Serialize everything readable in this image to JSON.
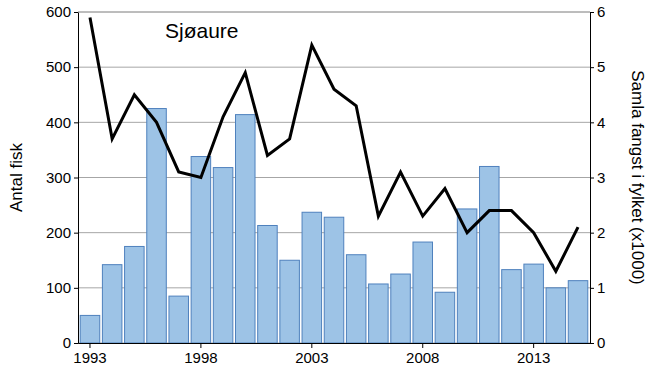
{
  "chart_data": {
    "type": "bar",
    "title": "Sjøaure",
    "categories": [
      1993,
      null,
      null,
      null,
      null,
      1998,
      null,
      null,
      null,
      null,
      2003,
      null,
      null,
      null,
      null,
      2008,
      null,
      null,
      null,
      null,
      2013,
      null,
      null
    ],
    "series": [
      {
        "type": "bar",
        "color": "#9dc3e6",
        "values": [
          50,
          142,
          175,
          425,
          85,
          338,
          318,
          414,
          213,
          150,
          237,
          228,
          160,
          107,
          125,
          183,
          92,
          243,
          320,
          133,
          143,
          100,
          113
        ]
      },
      {
        "type": "line",
        "color": "#000000",
        "axis": "y2",
        "values": [
          5.9,
          3.7,
          4.5,
          4.0,
          3.1,
          3.0,
          4.1,
          4.9,
          3.4,
          3.7,
          5.4,
          4.6,
          4.3,
          2.3,
          3.1,
          2.3,
          2.8,
          2.0,
          2.4,
          2.4,
          2.0,
          1.3,
          2.1
        ]
      }
    ],
    "y_label": "Antal fisk",
    "y2_label": "Samla fangst i fylket (x1000)",
    "ylim": [
      0,
      600
    ],
    "yticks": [
      0,
      100,
      200,
      300,
      400,
      500,
      600
    ],
    "y2lim": [
      0,
      6
    ],
    "y2ticks": [
      0,
      1,
      2,
      3,
      4,
      5,
      6
    ],
    "grid": true
  }
}
